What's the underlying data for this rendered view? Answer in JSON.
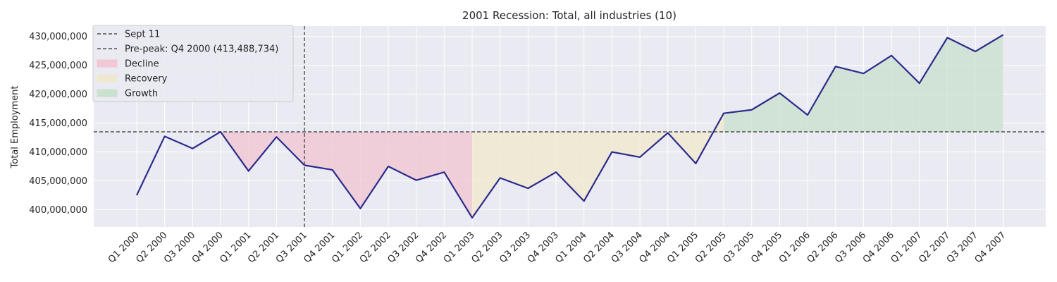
{
  "chart_data": {
    "type": "line",
    "title": "2001 Recession: Total, all industries (10)",
    "xlabel": "",
    "ylabel": "Total Employment",
    "ylim": [
      397000000,
      431800000
    ],
    "yticks": [
      400000000,
      405000000,
      410000000,
      415000000,
      420000000,
      425000000,
      430000000
    ],
    "ytick_labels": [
      "400,000,000",
      "405,000,000",
      "410,000,000",
      "415,000,000",
      "420,000,000",
      "425,000,000",
      "430,000,000"
    ],
    "grid": true,
    "legend_position": "top-left",
    "categories": [
      "Q1 2000",
      "Q2 2000",
      "Q3 2000",
      "Q4 2000",
      "Q1 2001",
      "Q2 2001",
      "Q3 2001",
      "Q4 2001",
      "Q1 2002",
      "Q2 2002",
      "Q3 2002",
      "Q4 2002",
      "Q1 2003",
      "Q2 2003",
      "Q3 2003",
      "Q4 2003",
      "Q1 2004",
      "Q2 2004",
      "Q3 2004",
      "Q4 2004",
      "Q1 2005",
      "Q2 2005",
      "Q3 2005",
      "Q4 2005",
      "Q1 2006",
      "Q2 2006",
      "Q3 2006",
      "Q4 2006",
      "Q1 2007",
      "Q2 2007",
      "Q3 2007",
      "Q4 2007"
    ],
    "series": [
      {
        "color": "#2b2b8c",
        "values": [
          402500000,
          412700000,
          410600000,
          413488734,
          406700000,
          412600000,
          407700000,
          406900000,
          400200000,
          407500000,
          405100000,
          406500000,
          398600000,
          405500000,
          403700000,
          406500000,
          401500000,
          410000000,
          409100000,
          413300000,
          408000000,
          416700000,
          417300000,
          420200000,
          416400000,
          424800000,
          423600000,
          426700000,
          421900000,
          429800000,
          427400000,
          430300000
        ]
      }
    ],
    "reference_lines": [
      {
        "orientation": "vertical",
        "at_category": "Q3 2001",
        "label": "Sept 11",
        "style": "dashed",
        "color": "#333333"
      },
      {
        "orientation": "horizontal",
        "value": 413488734,
        "label": "Pre-peak: Q4 2000 (413,488,734)",
        "style": "dashed",
        "color": "#333333"
      }
    ],
    "shaded_regions": [
      {
        "label": "Decline",
        "from": "Q4 2000",
        "to": "Q1 2003",
        "color": "#f2c4d0"
      },
      {
        "label": "Recovery",
        "from": "Q1 2003",
        "to": "Q2 2005",
        "color": "#f0e8cc"
      },
      {
        "label": "Growth",
        "from": "Q2 2005",
        "to": "Q4 2007",
        "color": "#c8e0cc"
      }
    ],
    "legend": [
      "Sept 11",
      "Pre-peak: Q4 2000 (413,488,734)",
      "Decline",
      "Recovery",
      "Growth"
    ],
    "background": "#eaeaf2"
  }
}
